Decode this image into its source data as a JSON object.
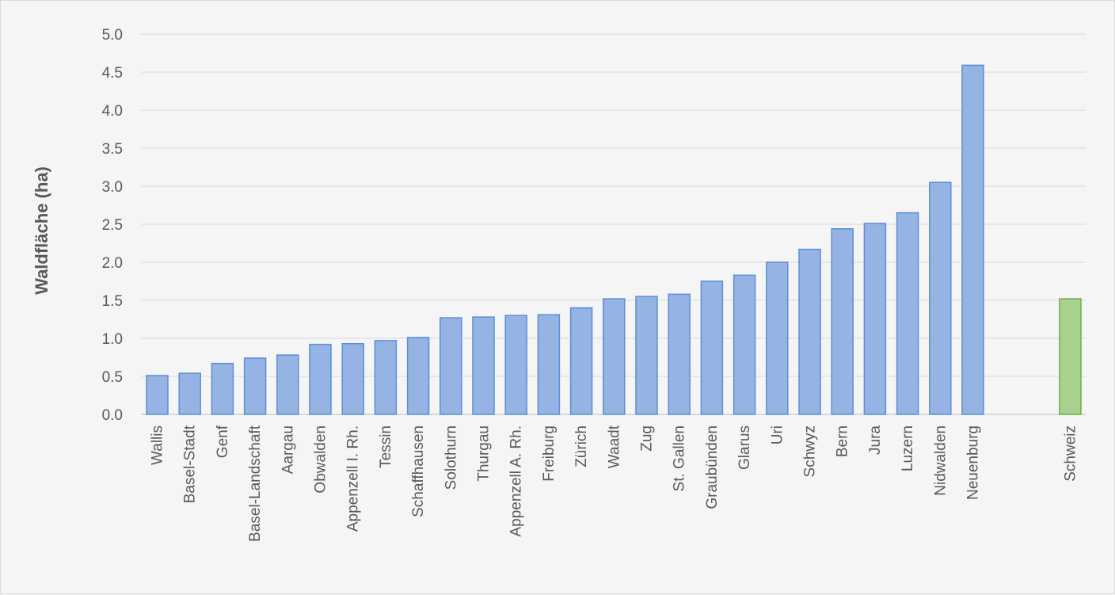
{
  "chart_data": {
    "type": "bar",
    "ylabel": "Waldfläche  (ha)",
    "xlabel": "",
    "ylim": [
      0,
      5
    ],
    "ytick_step": 0.5,
    "yticks": [
      "0.0",
      "0.5",
      "1.0",
      "1.5",
      "2.0",
      "2.5",
      "3.0",
      "3.5",
      "4.0",
      "4.5",
      "5.0"
    ],
    "grid": true,
    "categories": [
      "Wallis",
      "Basel-Stadt",
      "Genf",
      "Basel-Landschaft",
      "Aargau",
      "Obwalden",
      "Appenzell I. Rh.",
      "Tessin",
      "Schaffhausen",
      "Solothurn",
      "Thurgau",
      "Appenzell A. Rh.",
      "Freiburg",
      "Zürich",
      "Waadt",
      "Zug",
      "St. Gallen",
      "Graubünden",
      "Glarus",
      "Uri",
      "Schwyz",
      "Bern",
      "Jura",
      "Luzern",
      "Nidwalden",
      "Neuenburg",
      "Schweiz"
    ],
    "values": [
      0.51,
      0.54,
      0.67,
      0.74,
      0.78,
      0.92,
      0.93,
      0.97,
      1.01,
      1.27,
      1.28,
      1.3,
      1.31,
      1.4,
      1.52,
      1.55,
      1.58,
      1.75,
      1.83,
      2.0,
      2.17,
      2.44,
      2.51,
      2.65,
      3.05,
      4.59,
      1.52
    ],
    "colors": {
      "default_fill": "#95b3e3",
      "default_stroke": "#5b8fd6",
      "highlight_fill": "#a9d18e",
      "highlight_stroke": "#70ad47"
    },
    "highlight_category": "Schweiz"
  }
}
